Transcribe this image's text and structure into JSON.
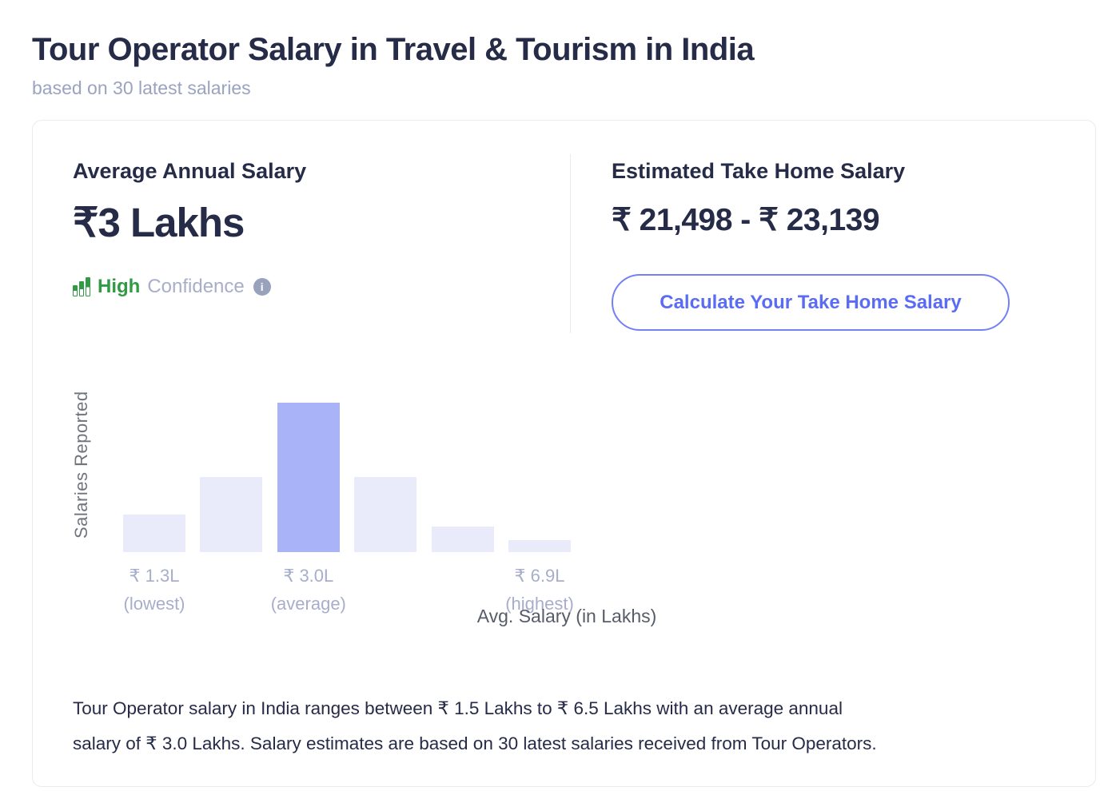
{
  "page": {
    "title": "Tour Operator Salary in Travel & Tourism in India",
    "subtitle": "based on 30 latest salaries"
  },
  "card": {
    "average_salary": {
      "heading": "Average Annual Salary",
      "amount": "₹3 Lakhs",
      "confidence": {
        "level": "High",
        "label": "Confidence",
        "meter_icon": "bar-meter-icon",
        "info_icon": "info-icon",
        "info_glyph": "i"
      }
    },
    "take_home": {
      "heading": "Estimated Take Home Salary",
      "range": "₹ 21,498 - ₹ 23,139",
      "button_label": "Calculate Your Take Home Salary"
    },
    "description": {
      "lines": [
        "Tour Operator salary in India ranges between ₹ 1.5 Lakhs to ₹ 6.5 Lakhs with an average annual",
        "salary of ₹ 3.0 Lakhs. Salary estimates are based on 30 latest salaries received from Tour Operators."
      ]
    }
  },
  "chart_data": {
    "type": "bar",
    "title": "",
    "xlabel": "Avg. Salary (in Lakhs)",
    "ylabel": "Salaries Reported",
    "categories": [
      "₹ 1.3L",
      "",
      "₹ 3.0L",
      "",
      "",
      "₹ 6.9L"
    ],
    "values": [
      0.25,
      0.5,
      1.0,
      0.5,
      0.17,
      0.08
    ],
    "highlight_index": 2,
    "ticks": [
      {
        "bar_index": 0,
        "label": "₹ 1.3L",
        "sublabel": "(lowest)"
      },
      {
        "bar_index": 2,
        "label": "₹ 3.0L",
        "sublabel": "(average)"
      },
      {
        "bar_index": 5,
        "label": "₹ 6.9L",
        "sublabel": "(highest)"
      }
    ],
    "ylim": [
      0,
      1
    ],
    "grid": "off",
    "legend": "none",
    "colors": {
      "bar": "#e9ebfb",
      "bar_highlight": "#a9b3f8"
    }
  },
  "colors": {
    "heading_text": "#262b48",
    "muted_text": "#9aa3bf",
    "confidence_green": "#2f9b44",
    "confidence_gray": "#a6aec9",
    "accent_blue": "#5b6cf4",
    "accent_border": "#7380f7",
    "tick_label": "#a7aecb"
  }
}
